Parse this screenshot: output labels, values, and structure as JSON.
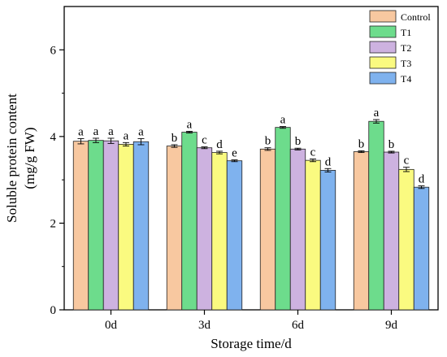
{
  "chart_data": {
    "type": "bar",
    "xlabel": "Storage time/d",
    "ylabel_line1": "Soluble protein content",
    "ylabel_line2": "(mg/g FW)",
    "categories": [
      "0d",
      "3d",
      "6d",
      "9d"
    ],
    "ylim": [
      0,
      7
    ],
    "yticks": [
      0,
      2,
      4,
      6
    ],
    "legend_position": "top-right",
    "series": [
      {
        "name": "Control",
        "color": "#F8C8A0",
        "values": [
          3.89,
          3.78,
          3.71,
          3.65
        ],
        "errors": [
          0.06,
          0.03,
          0.03,
          0.02
        ],
        "letters": [
          "a",
          "b",
          "b",
          "b"
        ]
      },
      {
        "name": "T1",
        "color": "#6DDC8C",
        "values": [
          3.91,
          4.1,
          4.21,
          4.35
        ],
        "errors": [
          0.05,
          0.02,
          0.02,
          0.04
        ],
        "letters": [
          "a",
          "a",
          "a",
          "a"
        ]
      },
      {
        "name": "T2",
        "color": "#CDB2E0",
        "values": [
          3.9,
          3.74,
          3.71,
          3.64
        ],
        "errors": [
          0.06,
          0.02,
          0.02,
          0.02
        ],
        "letters": [
          "a",
          "c",
          "b",
          "b"
        ]
      },
      {
        "name": "T3",
        "color": "#FAFA80",
        "values": [
          3.82,
          3.63,
          3.45,
          3.24
        ],
        "errors": [
          0.04,
          0.03,
          0.03,
          0.05
        ],
        "letters": [
          "a",
          "d",
          "c",
          "c"
        ]
      },
      {
        "name": "T4",
        "color": "#7FB2EE",
        "values": [
          3.88,
          3.44,
          3.22,
          2.83
        ],
        "errors": [
          0.07,
          0.02,
          0.04,
          0.03
        ],
        "letters": [
          "a",
          "e",
          "d",
          "d"
        ]
      }
    ]
  }
}
